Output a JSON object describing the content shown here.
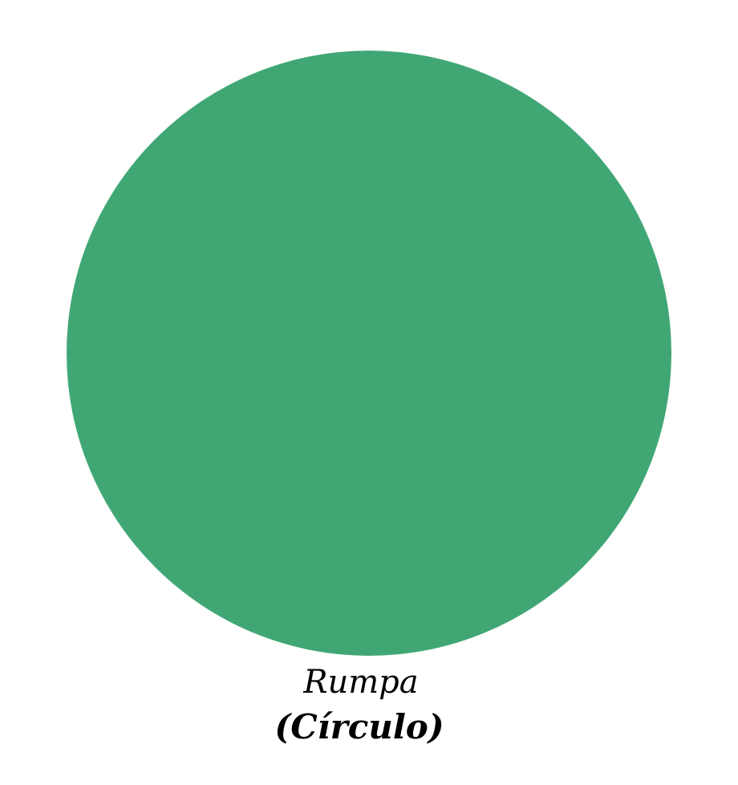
{
  "shape": {
    "kind": "circle",
    "color": "#40A774"
  },
  "caption": {
    "name": "Rumpa",
    "term": "(Círculo)"
  }
}
